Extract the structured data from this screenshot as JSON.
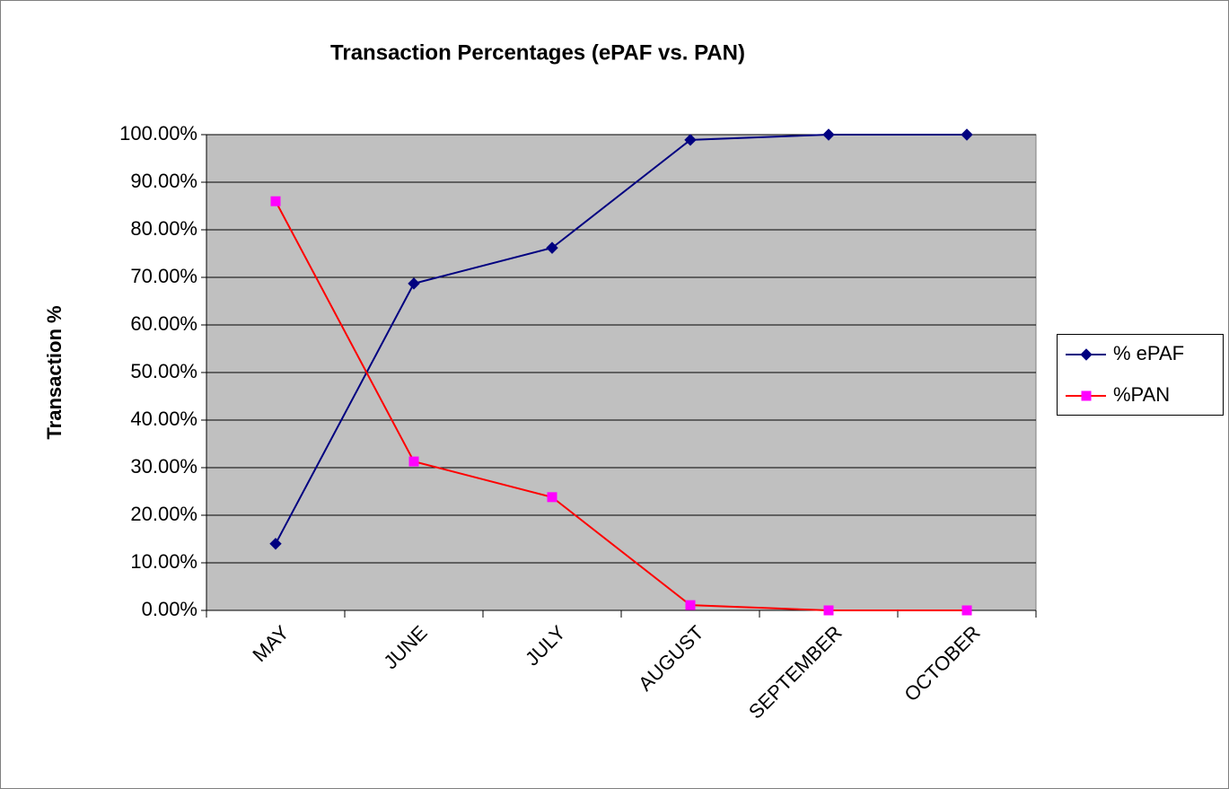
{
  "chart_data": {
    "type": "line",
    "title": "Transaction Percentages (ePAF vs. PAN)",
    "y_label": "Transaction %",
    "categories": [
      "MAY",
      "JUNE",
      "JULY",
      "AUGUST",
      "SEPTEMBER",
      "OCTOBER"
    ],
    "series": [
      {
        "name": "% ePAF",
        "color": "#000080",
        "marker": "diamond",
        "marker_color": "#000080",
        "values": [
          14,
          68.7,
          76.2,
          98.9,
          100,
          100
        ]
      },
      {
        "name": "%PAN",
        "color": "#ff0000",
        "marker": "square",
        "marker_color": "#ff00ff",
        "values": [
          86,
          31.3,
          23.8,
          1.1,
          0,
          0
        ]
      }
    ],
    "ylim": [
      0,
      100
    ],
    "yticks": [
      {
        "value": 0,
        "label": "0.00%"
      },
      {
        "value": 10,
        "label": "10.00%"
      },
      {
        "value": 20,
        "label": "20.00%"
      },
      {
        "value": 30,
        "label": "30.00%"
      },
      {
        "value": 40,
        "label": "40.00%"
      },
      {
        "value": 50,
        "label": "50.00%"
      },
      {
        "value": 60,
        "label": "60.00%"
      },
      {
        "value": 70,
        "label": "70.00%"
      },
      {
        "value": 80,
        "label": "80.00%"
      },
      {
        "value": 90,
        "label": "90.00%"
      },
      {
        "value": 100,
        "label": "100.00%"
      }
    ],
    "grid": true,
    "legend": "right"
  }
}
